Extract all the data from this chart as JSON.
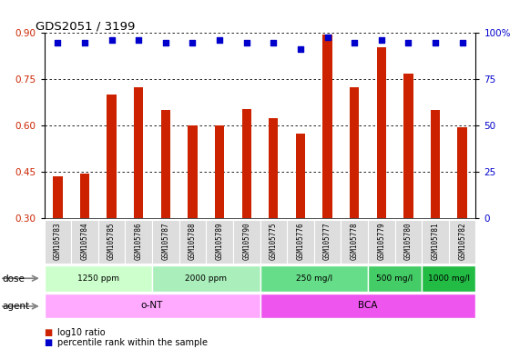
{
  "title": "GDS2051 / 3199",
  "samples": [
    "GSM105783",
    "GSM105784",
    "GSM105785",
    "GSM105786",
    "GSM105787",
    "GSM105788",
    "GSM105789",
    "GSM105790",
    "GSM105775",
    "GSM105776",
    "GSM105777",
    "GSM105778",
    "GSM105779",
    "GSM105780",
    "GSM105781",
    "GSM105782"
  ],
  "log10_ratio": [
    0.435,
    0.445,
    0.7,
    0.725,
    0.65,
    0.6,
    0.6,
    0.655,
    0.625,
    0.575,
    0.895,
    0.725,
    0.855,
    0.77,
    0.65,
    0.595
  ],
  "percentile_left": [
    0.868,
    0.868,
    0.878,
    0.878,
    0.868,
    0.868,
    0.878,
    0.868,
    0.868,
    0.848,
    0.888,
    0.868,
    0.878,
    0.868,
    0.868,
    0.868
  ],
  "bar_color": "#cc2200",
  "dot_color": "#0000cc",
  "ylim_left": [
    0.3,
    0.9
  ],
  "yticks_left": [
    0.3,
    0.45,
    0.6,
    0.75,
    0.9
  ],
  "yticks_right_labels": [
    "0",
    "25",
    "50",
    "75",
    "100%"
  ],
  "yticks_right_vals": [
    0,
    25,
    50,
    75,
    100
  ],
  "ylim_right": [
    0,
    100
  ],
  "dose_groups": [
    {
      "label": "1250 ppm",
      "start": 0,
      "end": 4,
      "color": "#ccffcc"
    },
    {
      "label": "2000 ppm",
      "start": 4,
      "end": 8,
      "color": "#aaeebb"
    },
    {
      "label": "250 mg/l",
      "start": 8,
      "end": 12,
      "color": "#66dd88"
    },
    {
      "label": "500 mg/l",
      "start": 12,
      "end": 14,
      "color": "#44cc66"
    },
    {
      "label": "1000 mg/l",
      "start": 14,
      "end": 16,
      "color": "#22bb44"
    }
  ],
  "agent_groups": [
    {
      "label": "o-NT",
      "start": 0,
      "end": 8,
      "color": "#ffaaff"
    },
    {
      "label": "BCA",
      "start": 8,
      "end": 16,
      "color": "#ee55ee"
    }
  ],
  "dose_label": "dose",
  "agent_label": "agent",
  "legend_bar_label": "log10 ratio",
  "legend_dot_label": "percentile rank within the sample",
  "background_color": "#ffffff",
  "tick_label_color_left": "#cc2200",
  "tick_label_color_right": "#0000cc",
  "label_row_color": "#dddddd"
}
